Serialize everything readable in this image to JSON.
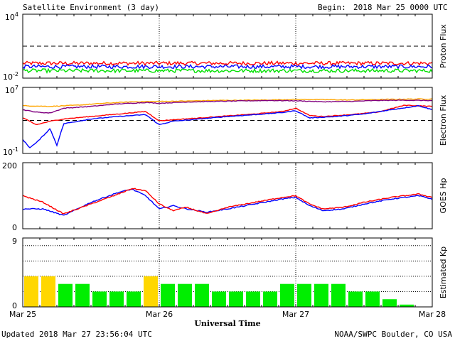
{
  "header": {
    "title": "Satellite Environment (3 day)",
    "begin_label": "Begin:",
    "begin_value": "2018 Mar 25 0000 UTC"
  },
  "footer": {
    "updated": "Updated 2018 Mar 27 23:56:04 UTC",
    "credit": "NOAA/SWPC Boulder, CO USA"
  },
  "chart_data": [
    {
      "type": "line",
      "ylabel": "Proton Flux",
      "yscale": "log",
      "yticks": [
        {
          "base": "10",
          "exp": "4"
        },
        {
          "base": "10",
          "exp": "-2"
        }
      ],
      "ylim": [
        0.01,
        10000
      ],
      "threshold": 10,
      "series": [
        {
          "color": "#ff0000",
          "level": 0.25
        },
        {
          "color": "#0000ff",
          "level": 0.12
        },
        {
          "color": "#00e000",
          "level": 0.05
        }
      ]
    },
    {
      "type": "line",
      "ylabel": "Electron Flux",
      "yscale": "log",
      "yticks": [
        {
          "base": "10",
          "exp": "7"
        },
        {
          "base": "10",
          "exp": "-1"
        }
      ],
      "ylim": [
        0.1,
        10000000
      ],
      "threshold": 1000,
      "series": [
        {
          "color": "#ffa500",
          "points": [
            [
              0,
              60000
            ],
            [
              0.2,
              50000
            ],
            [
              0.4,
              70000
            ],
            [
              0.6,
              120000
            ],
            [
              0.8,
              180000
            ],
            [
              1,
              200000
            ],
            [
              1.2,
              220000
            ],
            [
              1.4,
              260000
            ],
            [
              1.6,
              280000
            ],
            [
              1.8,
              300000
            ],
            [
              2,
              350000
            ],
            [
              2.2,
              330000
            ],
            [
              2.4,
              300000
            ],
            [
              2.6,
              340000
            ],
            [
              2.8,
              380000
            ],
            [
              3,
              400000
            ]
          ]
        },
        {
          "color": "#800080",
          "points": [
            [
              0,
              20000
            ],
            [
              0.1,
              10000
            ],
            [
              0.2,
              8000
            ],
            [
              0.3,
              30000
            ],
            [
              0.5,
              50000
            ],
            [
              0.7,
              100000
            ],
            [
              0.9,
              150000
            ],
            [
              1,
              120000
            ],
            [
              1.2,
              170000
            ],
            [
              1.4,
              200000
            ],
            [
              1.6,
              230000
            ],
            [
              1.8,
              260000
            ],
            [
              2,
              240000
            ],
            [
              2.2,
              180000
            ],
            [
              2.4,
              200000
            ],
            [
              2.6,
              260000
            ],
            [
              2.8,
              280000
            ],
            [
              3,
              250000
            ]
          ]
        },
        {
          "color": "#ff0000",
          "points": [
            [
              0,
              2000
            ],
            [
              0.1,
              300
            ],
            [
              0.2,
              800
            ],
            [
              0.3,
              1500
            ],
            [
              0.5,
              3000
            ],
            [
              0.7,
              6000
            ],
            [
              0.9,
              12000
            ],
            [
              1,
              900
            ],
            [
              1.1,
              1200
            ],
            [
              1.3,
              2000
            ],
            [
              1.5,
              3500
            ],
            [
              1.7,
              6000
            ],
            [
              1.9,
              12000
            ],
            [
              2,
              30000
            ],
            [
              2.1,
              4000
            ],
            [
              2.2,
              3000
            ],
            [
              2.4,
              5000
            ],
            [
              2.6,
              10000
            ],
            [
              2.8,
              70000
            ],
            [
              3,
              50000
            ]
          ]
        },
        {
          "color": "#0000ff",
          "points": [
            [
              0,
              5
            ],
            [
              0.05,
              0.5
            ],
            [
              0.1,
              2
            ],
            [
              0.2,
              100
            ],
            [
              0.25,
              1
            ],
            [
              0.3,
              400
            ],
            [
              0.5,
              1500
            ],
            [
              0.7,
              3000
            ],
            [
              0.9,
              5000
            ],
            [
              1,
              300
            ],
            [
              1.1,
              800
            ],
            [
              1.3,
              1500
            ],
            [
              1.5,
              3000
            ],
            [
              1.7,
              5000
            ],
            [
              1.9,
              9000
            ],
            [
              2,
              15000
            ],
            [
              2.1,
              2000
            ],
            [
              2.3,
              3000
            ],
            [
              2.5,
              6000
            ],
            [
              2.7,
              20000
            ],
            [
              2.9,
              60000
            ],
            [
              3,
              20000
            ]
          ]
        }
      ]
    },
    {
      "type": "line",
      "ylabel": "GOES Hp",
      "yticks": [
        "200",
        "0"
      ],
      "ylim": [
        0,
        200
      ],
      "series": [
        {
          "color": "#0000ff",
          "points": [
            [
              0,
              60
            ],
            [
              0.15,
              60
            ],
            [
              0.3,
              40
            ],
            [
              0.5,
              80
            ],
            [
              0.7,
              110
            ],
            [
              0.8,
              120
            ],
            [
              0.9,
              100
            ],
            [
              1,
              60
            ],
            [
              1.1,
              70
            ],
            [
              1.2,
              60
            ],
            [
              1.35,
              50
            ],
            [
              1.5,
              60
            ],
            [
              1.7,
              75
            ],
            [
              1.9,
              90
            ],
            [
              2,
              95
            ],
            [
              2.1,
              70
            ],
            [
              2.2,
              55
            ],
            [
              2.35,
              60
            ],
            [
              2.5,
              75
            ],
            [
              2.7,
              90
            ],
            [
              2.9,
              100
            ],
            [
              3,
              90
            ]
          ]
        },
        {
          "color": "#ff0000",
          "points": [
            [
              0,
              100
            ],
            [
              0.15,
              80
            ],
            [
              0.3,
              45
            ],
            [
              0.5,
              75
            ],
            [
              0.7,
              105
            ],
            [
              0.8,
              122
            ],
            [
              0.9,
              115
            ],
            [
              1,
              75
            ],
            [
              1.1,
              55
            ],
            [
              1.2,
              65
            ],
            [
              1.35,
              45
            ],
            [
              1.5,
              65
            ],
            [
              1.7,
              80
            ],
            [
              1.9,
              95
            ],
            [
              2,
              100
            ],
            [
              2.1,
              75
            ],
            [
              2.2,
              60
            ],
            [
              2.35,
              65
            ],
            [
              2.5,
              80
            ],
            [
              2.7,
              95
            ],
            [
              2.9,
              105
            ],
            [
              3,
              95
            ]
          ]
        }
      ]
    },
    {
      "type": "bar",
      "ylabel": "Estimated Kp",
      "yticks": [
        "9",
        "0"
      ],
      "ylim": [
        0,
        9
      ],
      "values": [
        4,
        4,
        3,
        3,
        2,
        2,
        2,
        4,
        3,
        3,
        3,
        2,
        2,
        2,
        2,
        3,
        3,
        3,
        3,
        2,
        2,
        1,
        0.3,
        0
      ],
      "colors": [
        "#ffd700",
        "#ffd700",
        "#00ee00",
        "#00ee00",
        "#00ee00",
        "#00ee00",
        "#00ee00",
        "#ffd700",
        "#00ee00",
        "#00ee00",
        "#00ee00",
        "#00ee00",
        "#00ee00",
        "#00ee00",
        "#00ee00",
        "#00ee00",
        "#00ee00",
        "#00ee00",
        "#00ee00",
        "#00ee00",
        "#00ee00",
        "#00ee00",
        "#00ee00",
        "#00ee00"
      ]
    }
  ],
  "xaxis": {
    "xlabel": "Universal Time",
    "ticks": [
      "Mar 25",
      "Mar 26",
      "Mar 27",
      "Mar 28"
    ]
  }
}
